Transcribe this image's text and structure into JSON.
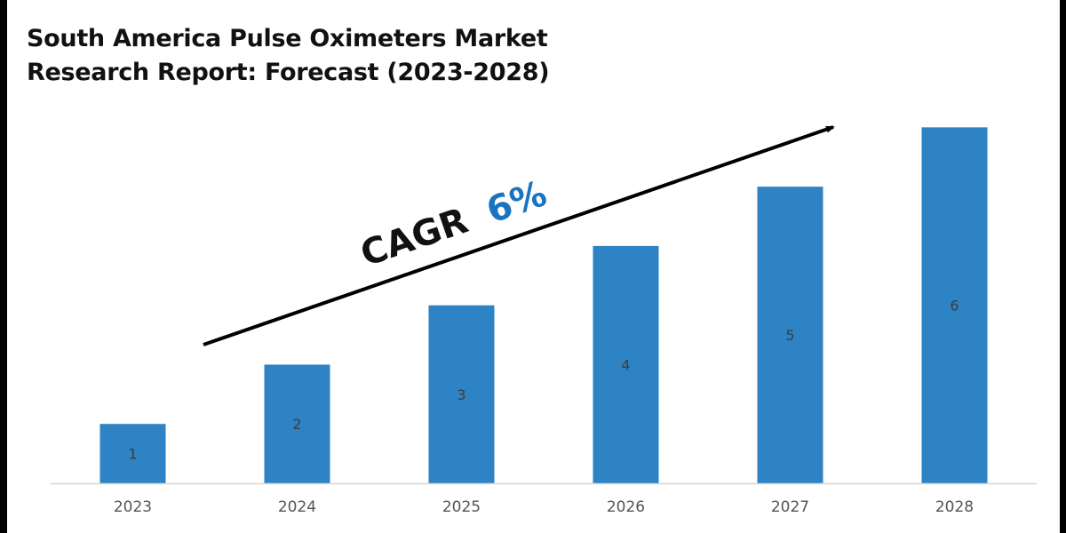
{
  "chart_data": {
    "type": "bar",
    "title": "South America Pulse Oximeters Market\nResearch Report: Forecast (2023-2028)",
    "categories": [
      "2023",
      "2024",
      "2025",
      "2026",
      "2027",
      "2028"
    ],
    "values": [
      1,
      2,
      3,
      4,
      5,
      6
    ],
    "data_labels": [
      "1",
      "2",
      "3",
      "4",
      "5",
      "6"
    ],
    "xlabel": "",
    "ylabel": "",
    "ylim": [
      0,
      6.05
    ],
    "grid": false,
    "legend": "none",
    "bar_color": "#2e83c4",
    "annotation": {
      "prefix": "CAGR",
      "value": "6%",
      "value_color": "#1a73c0",
      "arrow": "upward trend arrow from 2023-2024 to 2027-2028"
    }
  }
}
